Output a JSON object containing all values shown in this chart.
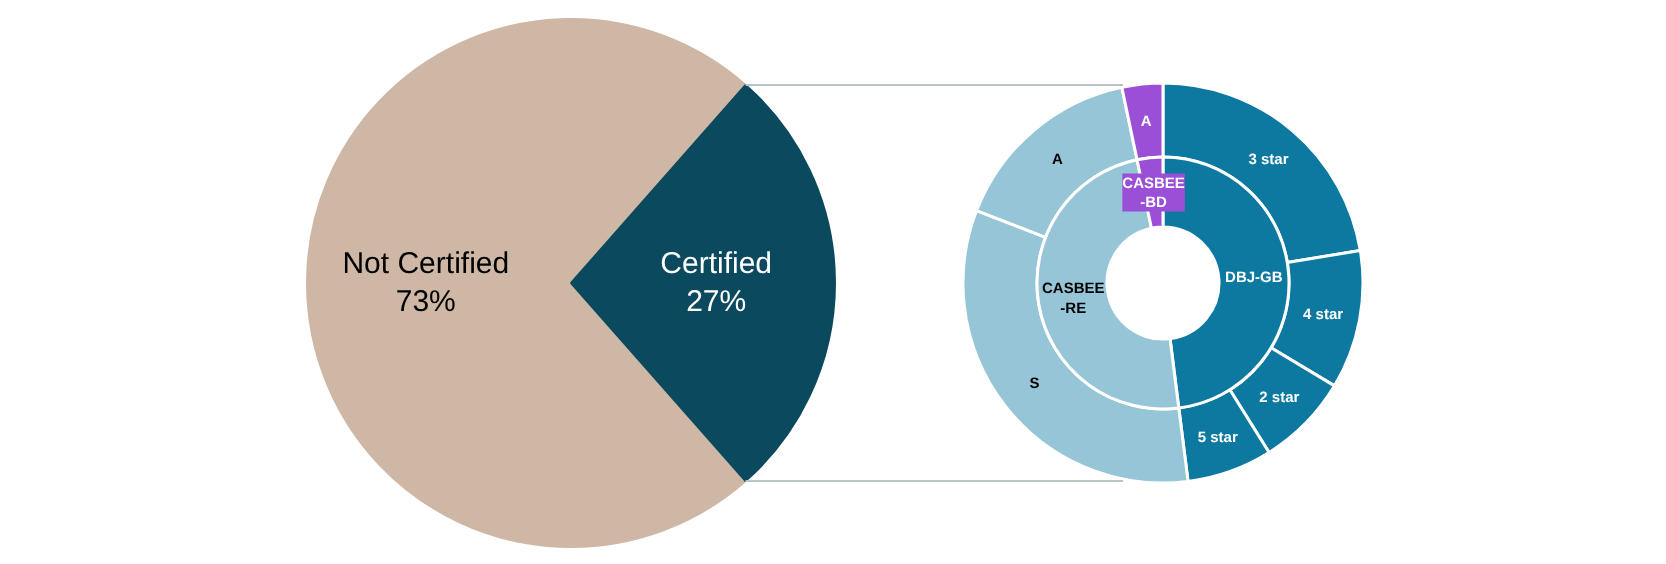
{
  "chart_data": [
    {
      "type": "pie",
      "categories": [
        "Not Certified",
        "Certified"
      ],
      "values": [
        73,
        27
      ],
      "value_labels": [
        "73%",
        "27%"
      ],
      "colors": [
        "#cfb7a5",
        "#0b4a5e"
      ]
    },
    {
      "type": "donut",
      "categories": [
        "3 star",
        "4 star",
        "2 star",
        "5 star",
        "S",
        "A",
        "A"
      ],
      "series": [
        {
          "values": [
            22.4,
            11.2,
            7.5,
            6.9,
            32.9,
            15.8,
            3.3
          ],
          "colors": [
            "#0e79a0",
            "#0e79a0",
            "#0e79a0",
            "#0e79a0",
            "#95c5d6",
            "#95c5d6",
            "#9b4fd6"
          ]
        },
        {
          "value_labels": [
            "DBJ-GB",
            null,
            null,
            null,
            "CASBEE\n-RE",
            null,
            "CASBEE\n-BD"
          ],
          "values": [
            48,
            null,
            null,
            null,
            48.7,
            null,
            3.3
          ],
          "colors": [
            "#0e79a0",
            null,
            null,
            null,
            "#95c5d6",
            null,
            "#9b4fd6"
          ]
        }
      ]
    }
  ]
}
